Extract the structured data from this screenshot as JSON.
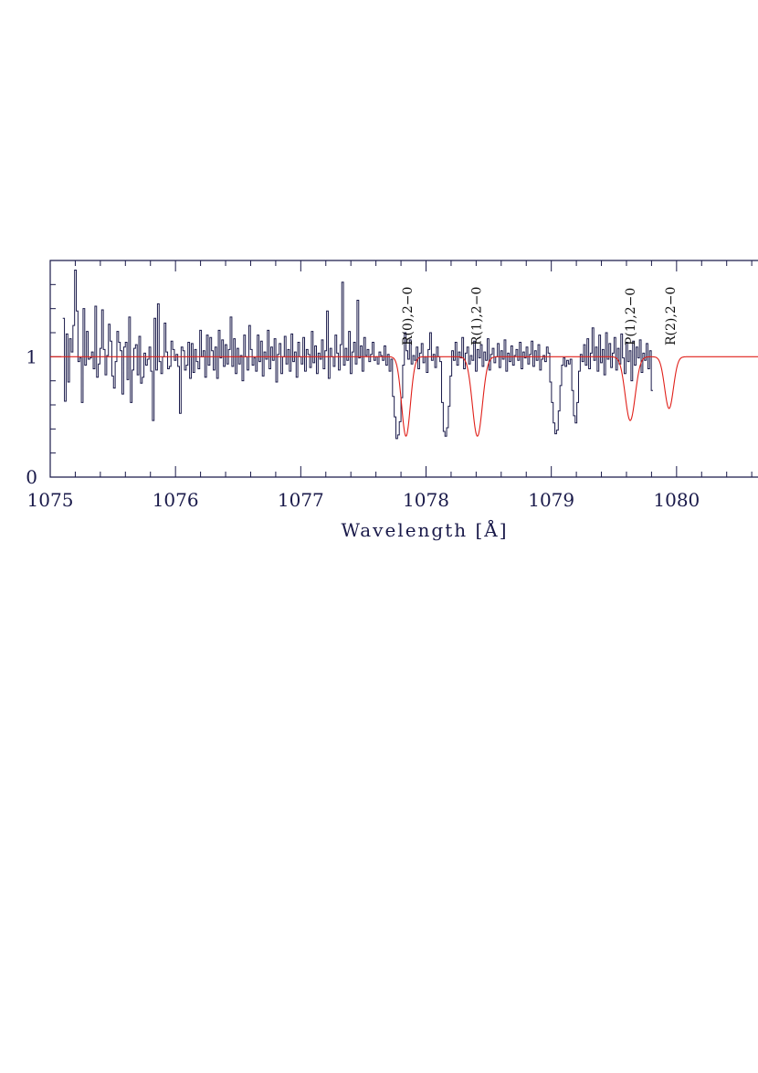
{
  "chart_data": {
    "type": "line",
    "title": "",
    "xlabel": "Wavelength [Å]",
    "ylabel": "",
    "xlim": [
      1075.0,
      1080.65
    ],
    "ylim": [
      0,
      1.8
    ],
    "x_ticks": [
      "1075",
      "1076",
      "1077",
      "1078",
      "1079",
      "1080"
    ],
    "y_ticks": [
      "0",
      "1"
    ],
    "grid": false,
    "colors": {
      "data": "#1a1a4a",
      "model": "#e0201a",
      "axes": "#1a1a4a"
    },
    "annotations": [
      {
        "text": "R(0),2−0",
        "x": 1077.85
      },
      {
        "text": "R(1),2−0",
        "x": 1078.4
      },
      {
        "text": "P(1),2−0",
        "x": 1079.63
      },
      {
        "text": "R(2),2−0",
        "x": 1079.95
      }
    ],
    "series": [
      {
        "kind": "model",
        "continuum": 1.0,
        "absorption_lines": [
          {
            "center": 1077.84,
            "depth": 0.66,
            "width": 0.035
          },
          {
            "center": 1078.41,
            "depth": 0.66,
            "width": 0.04
          },
          {
            "center": 1079.63,
            "depth": 0.53,
            "width": 0.04
          },
          {
            "center": 1079.94,
            "depth": 0.43,
            "width": 0.035
          }
        ]
      },
      {
        "kind": "data",
        "x_start": 1075.1,
        "x_step": 0.0135,
        "values": [
          1.32,
          0.63,
          1.19,
          0.79,
          1.15,
          1.04,
          1.26,
          1.72,
          1.38,
          0.96,
          0.99,
          0.62,
          1.4,
          0.93,
          1.21,
          0.98,
          0.99,
          1.04,
          0.9,
          1.42,
          0.83,
          0.94,
          1.07,
          1.39,
          1.06,
          0.85,
          1.01,
          1.27,
          1.13,
          0.84,
          0.74,
          0.96,
          1.21,
          1.12,
          1.05,
          0.69,
          1.08,
          1.12,
          0.81,
          1.33,
          0.62,
          0.89,
          1.07,
          1.1,
          0.85,
          1.17,
          0.78,
          0.83,
          1.03,
          0.93,
          0.98,
          1.08,
          0.88,
          0.47,
          1.32,
          0.89,
          1.44,
          0.96,
          0.86,
          1.0,
          1.28,
          1.04,
          0.9,
          0.92,
          1.13,
          1.06,
          0.97,
          1.02,
          0.92,
          0.53,
          1.08,
          1.05,
          0.89,
          0.93,
          1.12,
          0.82,
          1.11,
          0.87,
          1.06,
          0.96,
          0.9,
          1.22,
          1.0,
          1.05,
          0.83,
          1.18,
          0.93,
          1.16,
          1.05,
          0.89,
          1.08,
          0.82,
          1.22,
          0.99,
          1.14,
          0.92,
          1.1,
          0.94,
          1.06,
          1.33,
          0.92,
          1.15,
          0.86,
          1.07,
          0.94,
          1.01,
          0.8,
          1.18,
          1.0,
          0.89,
          1.26,
          1.06,
          0.93,
          0.99,
          0.88,
          1.18,
          0.96,
          1.13,
          0.84,
          1.04,
          0.98,
          1.22,
          0.9,
          1.08,
          0.97,
          1.15,
          0.79,
          1.02,
          1.11,
          0.86,
          1.0,
          1.17,
          0.94,
          1.06,
          0.88,
          1.19,
          0.96,
          1.04,
          0.83,
          1.12,
          1.0,
          0.94,
          1.16,
          0.88,
          1.06,
          1.02,
          0.91,
          1.21,
          0.95,
          1.09,
          0.86,
          1.03,
          0.98,
          1.14,
          0.9,
          1.05,
          1.38,
          0.82,
          1.07,
          1.0,
          0.92,
          1.18,
          1.03,
          0.89,
          1.1,
          1.62,
          0.93,
          1.07,
          0.97,
          1.21,
          0.86,
          1.04,
          1.12,
          0.94,
          1.47,
          0.99,
          1.09,
          0.88,
          1.16,
          1.01,
          1.06,
          0.96,
          1.02,
          1.12,
          0.97,
          1.0,
          0.94,
          1.04,
          1.01,
          0.97,
          1.09,
          0.93,
          1.02,
          0.88,
          0.98,
          0.67,
          0.5,
          0.32,
          0.35,
          0.46,
          0.66,
          0.93,
          1.2,
          1.05,
          0.98,
          1.14,
          0.94,
          1.01,
          0.97,
          1.08,
          0.9,
          1.03,
          1.11,
          0.95,
          1.0,
          0.87,
          1.06,
          1.2,
          0.97,
          1.02,
          0.91,
          1.08,
          1.0,
          0.96,
          0.62,
          0.38,
          0.34,
          0.41,
          0.59,
          0.84,
          1.05,
          0.97,
          1.12,
          0.93,
          1.04,
          0.99,
          1.16,
          0.9,
          1.03,
          1.08,
          0.94,
          1.01,
          0.97,
          1.13,
          0.88,
          1.06,
          0.99,
          1.1,
          0.92,
          1.04,
          0.97,
          1.15,
          0.89,
          1.02,
          1.07,
          0.95,
          1.0,
          1.11,
          0.91,
          1.05,
          0.98,
          1.14,
          0.88,
          1.03,
          0.96,
          1.09,
          0.93,
          1.01,
          1.06,
          0.97,
          1.12,
          0.9,
          1.04,
          0.99,
          1.08,
          0.94,
          1.02,
          1.13,
          0.92,
          1.05,
          0.97,
          1.1,
          0.89,
          0.98,
          1.01,
          0.96,
          1.08,
          1.03,
          0.79,
          0.62,
          0.45,
          0.36,
          0.39,
          0.55,
          0.76,
          0.93,
          0.99,
          0.92,
          0.97,
          0.94,
          0.98,
          0.72,
          0.51,
          0.45,
          0.62,
          0.88,
          1.02,
          0.96,
          1.1,
          0.93,
          1.15,
          0.9,
          1.03,
          1.24,
          0.97,
          1.08,
          0.88,
          1.18,
          0.95,
          1.06,
          0.85,
          1.2,
          0.98,
          1.11,
          0.91,
          1.03,
          1.16,
          0.89,
          1.07,
          0.94,
          1.19,
          0.99,
          0.86,
          1.12,
          0.96,
          1.05,
          0.8,
          1.13,
          0.93,
          1.08,
          0.99,
          1.14,
          0.87,
          1.03,
          0.97,
          1.11,
          0.9,
          1.05,
          0.72
        ]
      }
    ]
  }
}
